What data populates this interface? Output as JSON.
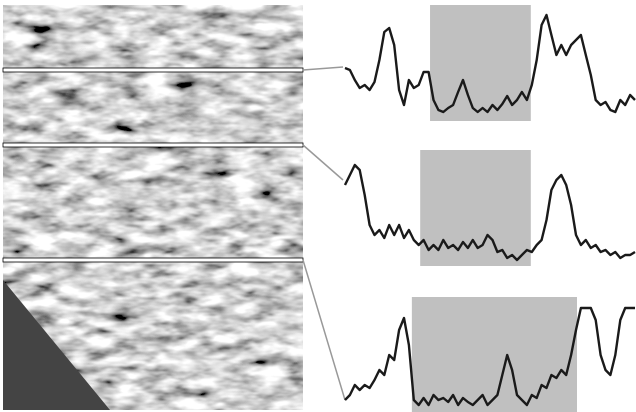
{
  "chart_data": [
    {
      "type": "line",
      "color": "#1a1a1a",
      "xlim": [
        0,
        59
      ],
      "ylim": [
        0,
        120
      ],
      "shaded_range": [
        17.3,
        37.8
      ],
      "shade_color": "#c0c0c0",
      "values": [
        52,
        50,
        40,
        32,
        35,
        30,
        38,
        60,
        88,
        92,
        75,
        30,
        15,
        40,
        32,
        35,
        48,
        48,
        20,
        10,
        8,
        12,
        15,
        28,
        40,
        25,
        12,
        8,
        12,
        8,
        15,
        10,
        16,
        24,
        15,
        20,
        28,
        20,
        35,
        60,
        95,
        105,
        85,
        65,
        75,
        65,
        75,
        80,
        85,
        65,
        45,
        20,
        15,
        18,
        10,
        8,
        20,
        15,
        25,
        20
      ]
    },
    {
      "type": "line",
      "color": "#1a1a1a",
      "xlim": [
        0,
        59
      ],
      "ylim": [
        0,
        120
      ],
      "shaded_range": [
        15.3,
        37.8
      ],
      "shade_color": "#c0c0c0",
      "values": [
        80,
        90,
        100,
        95,
        70,
        40,
        30,
        35,
        27,
        40,
        30,
        40,
        27,
        35,
        25,
        20,
        25,
        15,
        20,
        15,
        25,
        17,
        20,
        15,
        23,
        17,
        25,
        17,
        20,
        30,
        25,
        13,
        15,
        7,
        10,
        5,
        10,
        15,
        13,
        20,
        25,
        45,
        75,
        85,
        90,
        80,
        60,
        30,
        20,
        25,
        17,
        20,
        13,
        15,
        10,
        13,
        7,
        10,
        10,
        13
      ]
    },
    {
      "type": "line",
      "color": "#1a1a1a",
      "xlim": [
        0,
        59
      ],
      "ylim": [
        0,
        120
      ],
      "shaded_range": [
        13.6,
        47.2
      ],
      "shade_color": "#c0c0c0",
      "values": [
        12,
        17,
        27,
        22,
        27,
        24,
        32,
        42,
        37,
        57,
        52,
        82,
        94,
        67,
        12,
        7,
        14,
        7,
        17,
        12,
        14,
        10,
        17,
        7,
        14,
        10,
        7,
        12,
        17,
        7,
        12,
        17,
        37,
        57,
        42,
        17,
        12,
        7,
        17,
        14,
        27,
        24,
        37,
        34,
        42,
        37,
        57,
        82,
        104,
        104,
        104,
        92,
        57,
        42,
        37,
        57,
        92,
        104,
        104,
        104
      ]
    }
  ]
}
